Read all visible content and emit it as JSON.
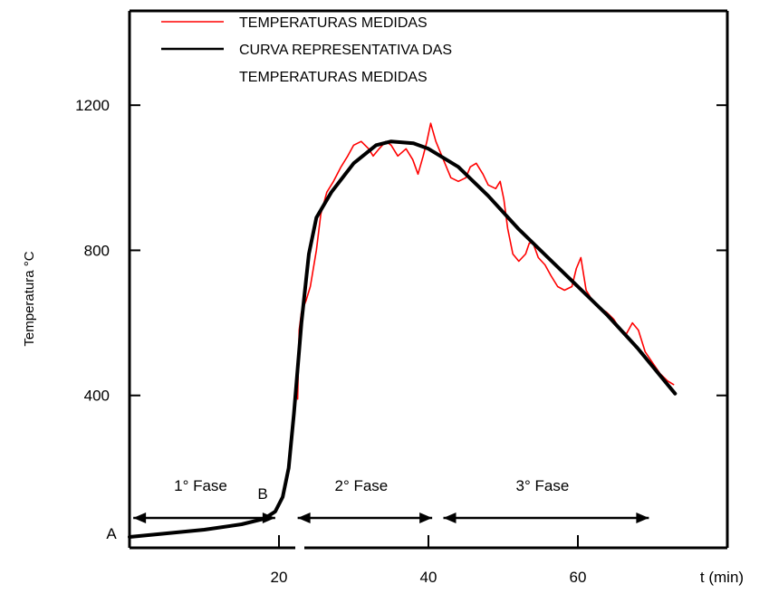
{
  "chart_data": {
    "type": "line",
    "title": "",
    "xlabel": "t (min)",
    "ylabel": "Temperatura °C",
    "xlim": [
      0,
      80
    ],
    "ylim": [
      -20,
      1460
    ],
    "x_ticks": [
      20,
      40,
      60
    ],
    "y_ticks": [
      400,
      800,
      1200
    ],
    "grid": false,
    "legend_position": "top",
    "colors": {
      "measured": "#ff0000",
      "curve": "#000000",
      "axes": "#000000"
    },
    "series": [
      {
        "name": "TEMPERATURAS MEDIDAS",
        "legend_line2": "",
        "x": [
          22.5,
          22.7,
          23.0,
          23.6,
          24.2,
          25.0,
          25.6,
          26.4,
          27.3,
          28.3,
          29.2,
          30.0,
          31.0,
          32.0,
          32.6,
          33.4,
          34.3,
          35.0,
          35.9,
          37.0,
          37.9,
          38.6,
          39.3,
          39.8,
          40.3,
          41.0,
          42.0,
          43.0,
          44.0,
          45.0,
          45.6,
          46.4,
          47.3,
          48.0,
          49.0,
          49.6,
          50.1,
          50.6,
          51.3,
          52.1,
          53.0,
          53.5,
          54.0,
          54.7,
          55.6,
          56.4,
          57.3,
          58.2,
          59.2,
          59.8,
          60.4,
          61.1,
          62.0,
          63.0,
          63.8,
          64.8,
          65.7,
          66.5,
          67.3,
          68.1,
          69.0,
          70.0,
          71.0,
          72.0,
          72.8
        ],
        "y": [
          390,
          580,
          630,
          660,
          700,
          800,
          900,
          960,
          990,
          1030,
          1060,
          1090,
          1100,
          1080,
          1060,
          1080,
          1100,
          1090,
          1060,
          1080,
          1050,
          1010,
          1060,
          1100,
          1150,
          1100,
          1050,
          1000,
          990,
          1000,
          1030,
          1040,
          1010,
          980,
          970,
          990,
          940,
          860,
          790,
          770,
          790,
          820,
          820,
          780,
          760,
          730,
          700,
          690,
          700,
          750,
          780,
          690,
          660,
          640,
          630,
          610,
          580,
          570,
          600,
          580,
          520,
          490,
          460,
          440,
          430
        ],
        "color": "#ff0000"
      },
      {
        "name": "CURVA REPRESENTATIVA DAS",
        "legend_line2": "TEMPERATURAS MEDIDAS",
        "x": [
          0,
          5,
          10,
          15,
          18,
          19.5,
          20.5,
          21.3,
          22.0,
          23.0,
          24.0,
          25.0,
          27.0,
          30.0,
          33.0,
          35.0,
          38.0,
          40.0,
          44.0,
          48.0,
          52.0,
          56.0,
          60.0,
          64.0,
          68.0,
          72.0,
          73.0
        ],
        "y": [
          10,
          20,
          30,
          45,
          60,
          80,
          120,
          200,
          350,
          600,
          790,
          890,
          960,
          1040,
          1090,
          1100,
          1095,
          1080,
          1030,
          950,
          860,
          780,
          700,
          620,
          530,
          430,
          405
        ],
        "color": "#000000"
      }
    ],
    "phases": [
      {
        "label": "1° Fase",
        "x_start": 0.5,
        "x_end": 19.5
      },
      {
        "label": "2° Fase",
        "x_start": 22.5,
        "x_end": 40.5
      },
      {
        "label": "3° Fase",
        "x_start": 42.0,
        "x_end": 69.5
      }
    ],
    "annotations": [
      {
        "text": "A",
        "x": 0,
        "y": 10
      },
      {
        "text": "B",
        "x": 20,
        "y": 80
      }
    ]
  }
}
